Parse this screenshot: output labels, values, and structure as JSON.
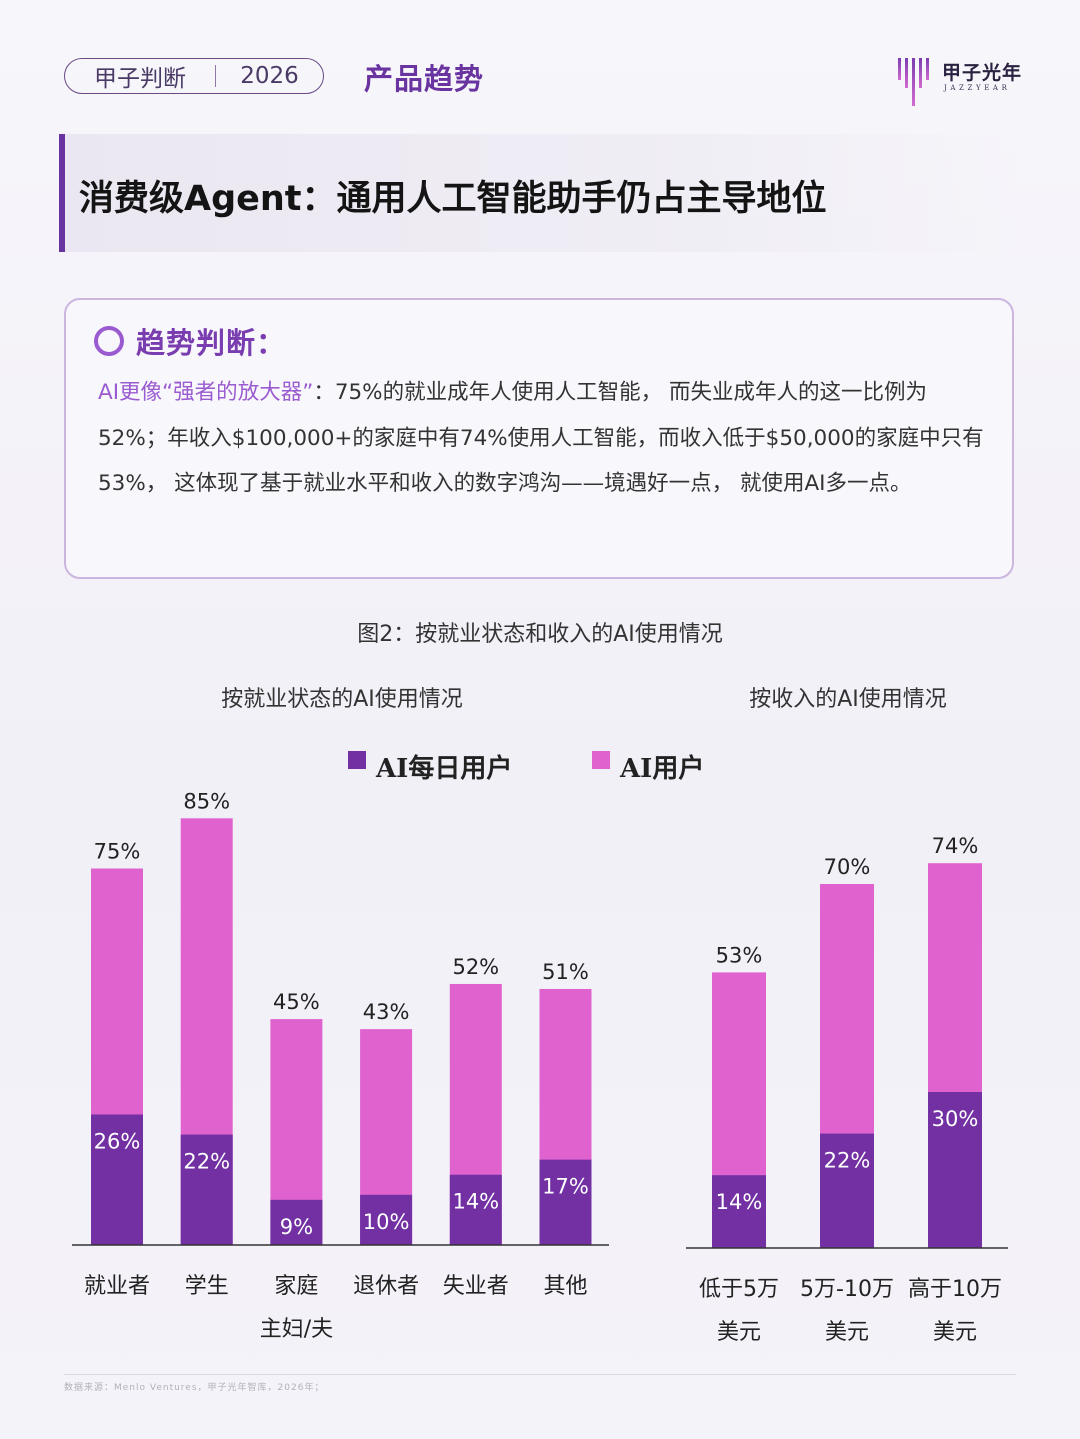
{
  "header": {
    "tag_left": "甲子判断",
    "tag_right": "2026",
    "section": "产品趋势",
    "logo_name": "甲子光年",
    "logo_sub": "JAZZYEAR"
  },
  "title": "消费级Agent：通用人工智能助手仍占主导地位",
  "trend": {
    "heading": "趋势判断：",
    "highlight": "AI更像“强者的放大器”",
    "body": "：75%的就业成年人使用人工智能， 而失业成年人的这一比例为52%；年收入$100,000+的家庭中有74%使用人工智能，而收入低于$50,000的家庭中只有53%， 这体现了基于就业水平和收入的数字鸿沟——境遇好一点， 就使用AI多一点。"
  },
  "figure_title": "图2：按就业状态和收入的AI使用情况",
  "source": "数据来源：Menlo Ventures，甲子光年智库，2026年；",
  "colors": {
    "daily": "#7230a3",
    "user": "#e062cf",
    "accent": "#6a34a0"
  },
  "legend": {
    "daily": "AI每日用户",
    "user": "AI用户"
  },
  "chart_data": [
    {
      "type": "bar",
      "title": "按就业状态的AI使用情况",
      "categories": [
        "就业者",
        "学生",
        "家庭\n主妇/夫",
        "退休者",
        "失业者",
        "其他"
      ],
      "series": [
        {
          "name": "AI每日用户",
          "values": [
            26,
            22,
            9,
            10,
            14,
            17
          ],
          "labels": [
            "26%",
            "22%",
            "9%",
            "10%",
            "14%",
            "17%"
          ]
        },
        {
          "name": "AI用户",
          "values": [
            75,
            85,
            45,
            43,
            52,
            51
          ],
          "labels": [
            "75%",
            "85%",
            "45%",
            "43%",
            "52%",
            "51%"
          ]
        }
      ],
      "overlap": true
    },
    {
      "type": "bar",
      "title": "按收入的AI使用情况",
      "categories": [
        "低于5万\n美元",
        "5万-10万\n美元",
        "高于10万\n美元"
      ],
      "series": [
        {
          "name": "AI每日用户",
          "values": [
            14,
            22,
            30
          ],
          "labels": [
            "14%",
            "22%",
            "30%"
          ]
        },
        {
          "name": "AI用户",
          "values": [
            53,
            70,
            74
          ],
          "labels": [
            "53%",
            "70%",
            "74%"
          ]
        }
      ],
      "overlap": true
    }
  ]
}
